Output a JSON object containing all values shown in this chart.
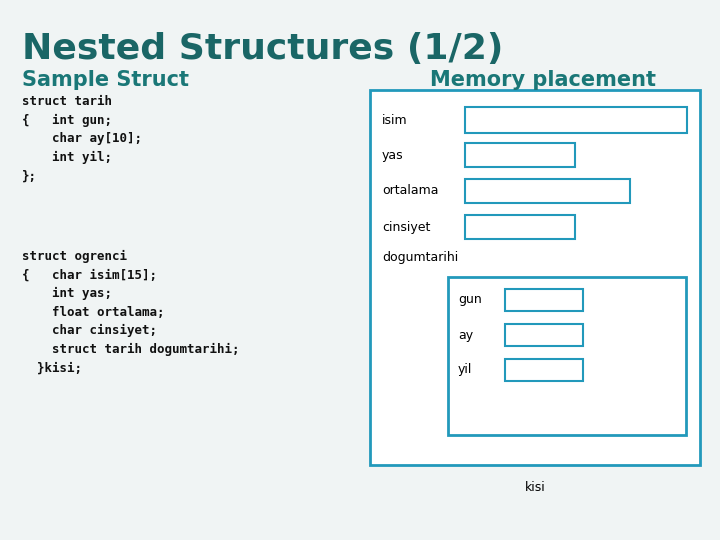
{
  "title": "Nested Structures (1/2)",
  "title_color": "#1a6666",
  "title_fontsize": 26,
  "section_left": "Sample Struct",
  "section_right": "Memory placement",
  "section_color": "#1a7777",
  "section_fontsize": 15,
  "bg_color": "#dce9e9",
  "bg_main_color": "#f0f4f4",
  "code_color": "#111111",
  "code_fontsize": 9,
  "code_block1": "struct tarih\n{   int gun;\n    char ay[10];\n    int yil;\n};",
  "code_block2": "struct ogrenci\n{   char isim[15];\n    int yas;\n    float ortalama;\n    char cinsiyet;\n    struct tarih dogumtarihi;\n  }kisi;",
  "box_border_color": "#2299bb",
  "box_fill_color": "#ffffff",
  "inner_box_fill": "#ffffff",
  "kisi_label": "kisi",
  "label_fontsize": 9,
  "inner_label_fontsize": 9
}
